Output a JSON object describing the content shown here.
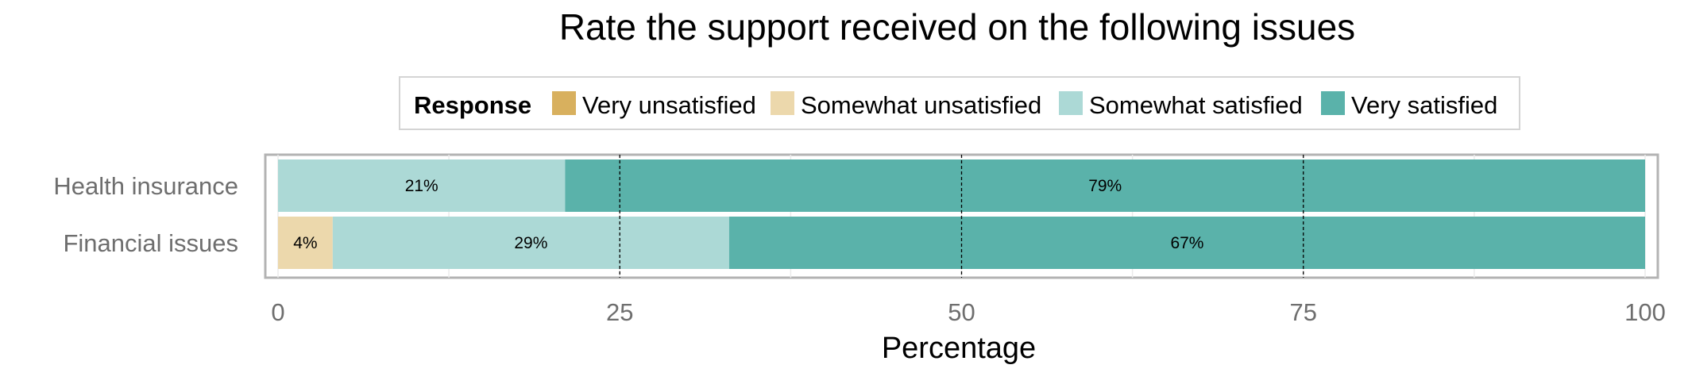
{
  "chart_data": {
    "type": "bar",
    "orientation": "horizontal",
    "stacked": true,
    "title": "Rate the support received on the following issues",
    "xlabel": "Percentage",
    "ylabel": "",
    "xlim": [
      0,
      100
    ],
    "x_ticks": [
      0,
      25,
      50,
      75,
      100
    ],
    "grid": true,
    "legend": {
      "title": "Response",
      "position": "top",
      "entries": [
        "Very unsatisfied",
        "Somewhat unsatisfied",
        "Somewhat satisfied",
        "Very satisfied"
      ]
    },
    "categories": [
      "Health insurance",
      "Financial issues"
    ],
    "series": [
      {
        "name": "Very unsatisfied",
        "color": "#d8b05e",
        "values": [
          0,
          0
        ]
      },
      {
        "name": "Somewhat unsatisfied",
        "color": "#ecd8ac",
        "values": [
          0,
          4
        ]
      },
      {
        "name": "Somewhat satisfied",
        "color": "#acd9d6",
        "values": [
          21,
          29
        ]
      },
      {
        "name": "Very satisfied",
        "color": "#5ab2aa",
        "values": [
          79,
          67
        ]
      }
    ],
    "data_labels": [
      [
        "",
        "",
        "21%",
        "79%"
      ],
      [
        "",
        "4%",
        "29%",
        "67%"
      ]
    ]
  }
}
